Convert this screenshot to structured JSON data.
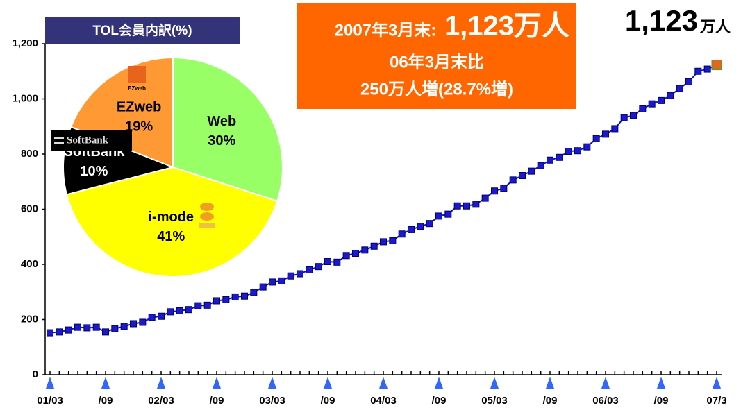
{
  "chart_data": {
    "type": "line",
    "categories": [
      "01/03",
      null,
      null,
      null,
      null,
      null,
      "/09",
      null,
      null,
      null,
      null,
      null,
      "02/03",
      null,
      null,
      null,
      null,
      null,
      "/09",
      null,
      null,
      null,
      null,
      null,
      "03/03",
      null,
      null,
      null,
      null,
      null,
      "/09",
      null,
      null,
      null,
      null,
      null,
      "04/03",
      null,
      null,
      null,
      null,
      null,
      "/09",
      null,
      null,
      null,
      null,
      null,
      "05/03",
      null,
      null,
      null,
      null,
      null,
      "/09",
      null,
      null,
      null,
      null,
      null,
      "06/03",
      null,
      null,
      null,
      null,
      null,
      "/09",
      null,
      null,
      null,
      null,
      null,
      "07/3"
    ],
    "series": [
      {
        "color": "#1010d0",
        "highlight_color": "#e8641c",
        "values": [
          152,
          155,
          162,
          172,
          170,
          172,
          155,
          167,
          175,
          185,
          190,
          208,
          212,
          228,
          232,
          236,
          250,
          252,
          268,
          272,
          282,
          285,
          298,
          318,
          336,
          340,
          358,
          366,
          380,
          392,
          410,
          408,
          432,
          440,
          452,
          466,
          482,
          486,
          510,
          526,
          538,
          548,
          575,
          582,
          612,
          612,
          618,
          640,
          666,
          676,
          706,
          722,
          738,
          758,
          778,
          788,
          810,
          812,
          826,
          856,
          872,
          892,
          932,
          940,
          964,
          982,
          994,
          1012,
          1038,
          1062,
          1100,
          1108,
          1123
        ]
      }
    ],
    "ylim": [
      0,
      1200
    ],
    "yticks": [
      0,
      200,
      400,
      600,
      800,
      {
        "value": 1000,
        "label": "1,000"
      },
      {
        "value": 1200,
        "label": "1,200"
      }
    ],
    "grid": false,
    "annotations": {
      "box_line1a": "2007年3月末:",
      "box_line1b": "1,123万人",
      "box_line2": "06年3月末比",
      "box_line3": "250万人増(28.7%増)",
      "corner_value": "1,123",
      "corner_unit": "万人"
    },
    "inset": {
      "type": "pie",
      "title": "TOL会員内訳(%)",
      "categories": [
        "Web",
        "i-mode",
        "SoftBank",
        "EZweb"
      ],
      "values": [
        30,
        41,
        10,
        19
      ],
      "value_labels": [
        "30%",
        "41%",
        "10%",
        "19%"
      ],
      "colors": [
        "#99ff66",
        "#ffff00",
        "#000000",
        "#ff9933"
      ],
      "logo_texts": {
        "softbank": "SoftBank",
        "ezweb": "EZweb"
      }
    }
  }
}
